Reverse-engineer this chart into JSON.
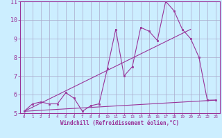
{
  "title": "",
  "xlabel": "Windchill (Refroidissement éolien,°C)",
  "ylabel": "",
  "bg_color": "#cceeff",
  "grid_color": "#aaaacc",
  "line_color": "#993399",
  "xlim": [
    -0.5,
    23.5
  ],
  "ylim": [
    5,
    11
  ],
  "xticks": [
    0,
    1,
    2,
    3,
    4,
    5,
    6,
    7,
    8,
    9,
    10,
    11,
    12,
    13,
    14,
    15,
    16,
    17,
    18,
    19,
    20,
    21,
    22,
    23
  ],
  "yticks": [
    5,
    6,
    7,
    8,
    9,
    10,
    11
  ],
  "series1_x": [
    0,
    1,
    2,
    3,
    4,
    5,
    6,
    7,
    8,
    9,
    10,
    11,
    12,
    13,
    14,
    15,
    16,
    17,
    18,
    19,
    20,
    21,
    22,
    23
  ],
  "series1_y": [
    5.1,
    5.5,
    5.6,
    5.5,
    5.5,
    6.1,
    5.8,
    5.1,
    5.4,
    5.5,
    7.4,
    9.5,
    7.0,
    7.5,
    9.6,
    9.4,
    8.9,
    11.0,
    10.5,
    9.5,
    9.0,
    8.0,
    5.7,
    5.7
  ],
  "series2_x": [
    0,
    23
  ],
  "series2_y": [
    5.1,
    5.7
  ],
  "series3_x": [
    0,
    20
  ],
  "series3_y": [
    5.1,
    9.5
  ]
}
